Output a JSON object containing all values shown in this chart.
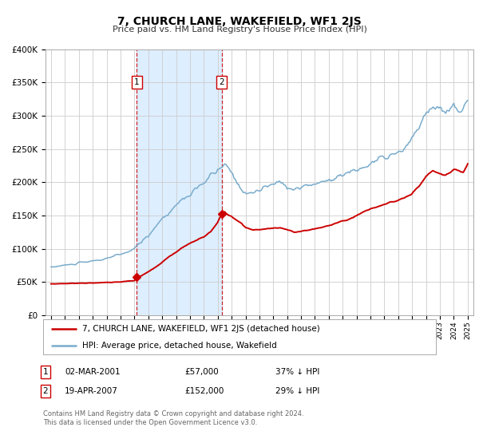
{
  "title": "7, CHURCH LANE, WAKEFIELD, WF1 2JS",
  "subtitle": "Price paid vs. HM Land Registry's House Price Index (HPI)",
  "legend_line1": "7, CHURCH LANE, WAKEFIELD, WF1 2JS (detached house)",
  "legend_line2": "HPI: Average price, detached house, Wakefield",
  "transaction1_date": "02-MAR-2001",
  "transaction1_price": "£57,000",
  "transaction1_hpi": "37% ↓ HPI",
  "transaction2_date": "19-APR-2007",
  "transaction2_price": "£152,000",
  "transaction2_hpi": "29% ↓ HPI",
  "footnote1": "Contains HM Land Registry data © Crown copyright and database right 2024.",
  "footnote2": "This data is licensed under the Open Government Licence v3.0.",
  "red_color": "#cc0000",
  "blue_color": "#7aaccc",
  "shade_color": "#ddeeff",
  "grid_color": "#cccccc",
  "background_color": "#ffffff",
  "ylim": [
    0,
    400000
  ],
  "yticks": [
    0,
    50000,
    100000,
    150000,
    200000,
    250000,
    300000,
    350000,
    400000
  ],
  "transaction1_x": 2001.17,
  "transaction1_y": 57000,
  "transaction2_x": 2007.3,
  "transaction2_y": 152000,
  "xlim_left": 1994.6,
  "xlim_right": 2025.4
}
